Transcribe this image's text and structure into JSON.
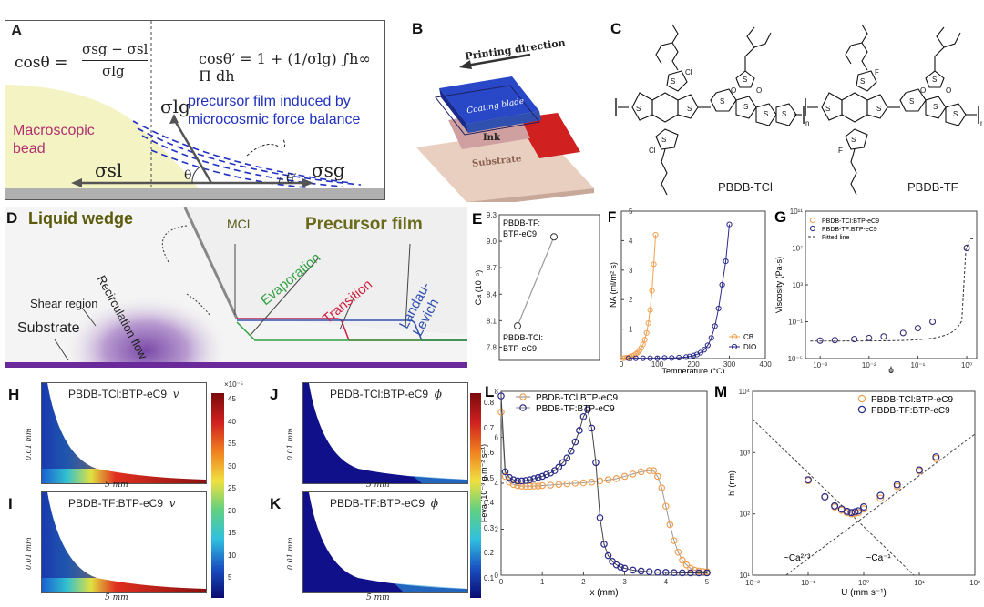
{
  "panels": {
    "A": {
      "label": "A",
      "eq1_lhs": "cosθ =",
      "eq1_num": "σsg − σsl",
      "eq1_den": "σlg",
      "eq2": "cosθ′ = 1 + (1/σlg) ∫h∞ Π dh",
      "sigma_lg": "σlg",
      "sigma_sl": "σsl",
      "sigma_sg": "σsg",
      "theta": "θ",
      "theta_prime": "θ′",
      "bead_line1": "Macroscopic",
      "bead_line2": "bead",
      "film_line1": "precursor film induced by",
      "film_line2": "microcosmic force balance"
    },
    "B": {
      "label": "B",
      "printing": "Printing direction",
      "blade": "Coating blade",
      "ink": "Ink",
      "substrate": "Substrate"
    },
    "C": {
      "label": "C",
      "mol1": "PBDB-TCl",
      "mol2": "PBDB-TF",
      "atom_cl": "Cl",
      "atom_f": "F",
      "atom_s": "S",
      "atom_o": "O",
      "sub_n": "n"
    },
    "D": {
      "label": "D",
      "liquid_wedge": "Liquid wedge",
      "precursor_film": "Precursor film",
      "mcl": "MCL",
      "recirculation": "Recirculation flow",
      "shear": "Shear region",
      "substrate": "Substrate",
      "evaporation": "Evaporation",
      "transition": "Transition",
      "landau": "Landau-Levich"
    },
    "H": {
      "label": "H",
      "title": "PBDB-TCl:BTP-eC9",
      "var": "v",
      "ylab": "0.01 mm",
      "xlab": "5 mm"
    },
    "I": {
      "label": "I",
      "title": "PBDB-TF:BTP-eC9",
      "var": "v",
      "ylab": "0.01 mm",
      "xlab": "5 mm"
    },
    "J": {
      "label": "J",
      "title": "PBDB-TCl:BTP-eC9",
      "var": "ϕ",
      "ylab": "0.01 mm",
      "xlab": "5 mm"
    },
    "K": {
      "label": "K",
      "title": "PBDB-TF:BTP-eC9",
      "var": "ϕ",
      "ylab": "0.01 mm",
      "xlab": "5 mm"
    },
    "colorbar_v": {
      "exp": "×10⁻⁵",
      "ticks": [
        "45",
        "40",
        "35",
        "30",
        "25",
        "20",
        "15",
        "10",
        "5"
      ]
    },
    "colorbar_phi": {
      "ticks": [
        "0.8",
        "0.7",
        "0.6",
        "0.5",
        "0.4",
        "0.3",
        "0.2",
        "0.1"
      ]
    }
  },
  "chart_data": [
    {
      "panel": "E",
      "label": "E",
      "type": "line",
      "ylabel": "Ca (10⁻⁵)",
      "ylim": [
        7.65,
        9.3
      ],
      "yticks": [
        "9.3",
        "9.0",
        "8.7",
        "8.4",
        "8.1",
        "7.8"
      ],
      "points": [
        {
          "name": "PBDB-TCl:BTP-eC9",
          "label1": "PBDB-TCl:",
          "label2": "BTP-eC9",
          "y": 8.04
        },
        {
          "name": "PBDB-TF:BTP-eC9",
          "label1": "PBDB-TF:",
          "label2": "BTP-eC9",
          "y": 9.05
        }
      ]
    },
    {
      "panel": "F",
      "label": "F",
      "type": "scatter",
      "xlabel": "Temperature (°C)",
      "ylabel": "NA (ml/m² s)",
      "xlim": [
        0,
        400
      ],
      "ylim": [
        0,
        5
      ],
      "xticks": [
        "0",
        "100",
        "200",
        "300",
        "400"
      ],
      "yticks": [
        "0",
        "1",
        "2",
        "3",
        "4",
        "5"
      ],
      "legend": [
        "CB",
        "DIO"
      ],
      "series": [
        {
          "name": "CB",
          "color": "#f0a050",
          "x": [
            5,
            10,
            15,
            20,
            25,
            30,
            35,
            40,
            45,
            50,
            55,
            60,
            65,
            70,
            75,
            80,
            85,
            90,
            95
          ],
          "y": [
            0.01,
            0.02,
            0.03,
            0.04,
            0.06,
            0.08,
            0.11,
            0.15,
            0.2,
            0.27,
            0.36,
            0.48,
            0.64,
            0.87,
            1.2,
            1.65,
            2.3,
            3.2,
            4.2
          ]
        },
        {
          "name": "DIO",
          "color": "#2a2a8a",
          "x": [
            20,
            40,
            60,
            80,
            100,
            120,
            140,
            160,
            180,
            190,
            200,
            210,
            220,
            230,
            240,
            250,
            260,
            270,
            280,
            290,
            300
          ],
          "y": [
            0.01,
            0.01,
            0.01,
            0.01,
            0.01,
            0.02,
            0.02,
            0.03,
            0.05,
            0.07,
            0.1,
            0.14,
            0.2,
            0.3,
            0.45,
            0.7,
            1.1,
            1.7,
            2.5,
            3.3,
            4.55
          ]
        }
      ]
    },
    {
      "panel": "G",
      "label": "G",
      "type": "scatter",
      "xlabel": "ϕ",
      "ylabel": "Viscosity (Pa·s)",
      "log_x": true,
      "log_y": true,
      "xlim": [
        0.0005,
        1.6
      ],
      "ylim": [
        1e-05,
        100000000000.0
      ],
      "xticks": [
        "10⁻³",
        "10⁻²",
        "10⁻¹",
        "10⁰"
      ],
      "yticks": [
        "10¹¹",
        "10⁷",
        "10³",
        "10⁻¹",
        "10⁻⁵"
      ],
      "legend": [
        "PBDB-TCl:BTP-eC9",
        "PBDB-TF:BTP-eC9",
        "Fitted line"
      ],
      "series": [
        {
          "name": "PBDB-TCl:BTP-eC9",
          "color": "#f0a050",
          "x": [
            0.001,
            0.002,
            0.005,
            0.01,
            0.02,
            0.05,
            0.1,
            0.2,
            1.0
          ],
          "y": [
            0.0009,
            0.001,
            0.0013,
            0.0017,
            0.0025,
            0.006,
            0.02,
            0.1,
            10000000.0
          ]
        },
        {
          "name": "PBDB-TF:BTP-eC9",
          "color": "#2a2a8a",
          "x": [
            0.001,
            0.002,
            0.005,
            0.01,
            0.02,
            0.05,
            0.1,
            0.2,
            1.0
          ],
          "y": [
            0.0009,
            0.001,
            0.0013,
            0.0017,
            0.0025,
            0.006,
            0.02,
            0.1,
            10000000.0
          ]
        }
      ]
    },
    {
      "panel": "L",
      "label": "L",
      "type": "line",
      "xlabel": "x (mm)",
      "ylabel": "Feva (10⁻³ g m⁻² s⁻¹)",
      "xlim": [
        0,
        5
      ],
      "ylim": [
        0,
        8
      ],
      "xticks": [
        "0",
        "1",
        "2",
        "3",
        "4",
        "5"
      ],
      "yticks": [
        "0",
        "2",
        "4",
        "6",
        "8"
      ],
      "legend": [
        "PBDB-TCl:BTP-eC9",
        "PBDB-TF:BTP-eC9"
      ],
      "series": [
        {
          "name": "PBDB-TCl:BTP-eC9",
          "color": "#f0a050",
          "x": [
            0,
            0.1,
            0.2,
            0.3,
            0.4,
            0.5,
            0.6,
            0.7,
            0.8,
            0.9,
            1.0,
            1.2,
            1.4,
            1.6,
            1.8,
            2.0,
            2.2,
            2.4,
            2.6,
            2.8,
            3.0,
            3.2,
            3.4,
            3.6,
            3.7,
            3.8,
            3.9,
            4.0,
            4.1,
            4.2,
            4.3,
            4.4,
            4.5,
            4.6,
            4.7,
            4.8,
            4.9,
            5.0
          ],
          "y": [
            7.1,
            4.3,
            4.05,
            3.95,
            3.9,
            3.88,
            3.87,
            3.87,
            3.88,
            3.88,
            3.9,
            3.92,
            3.95,
            3.98,
            4.0,
            4.02,
            4.05,
            4.1,
            4.15,
            4.2,
            4.3,
            4.4,
            4.5,
            4.55,
            4.55,
            4.3,
            3.8,
            3.0,
            2.2,
            1.5,
            1.0,
            0.65,
            0.45,
            0.3,
            0.22,
            0.18,
            0.16,
            0.15
          ]
        },
        {
          "name": "PBDB-TF:BTP-eC9",
          "color": "#2a2a8a",
          "x": [
            0,
            0.1,
            0.2,
            0.3,
            0.4,
            0.5,
            0.6,
            0.7,
            0.8,
            0.9,
            1.0,
            1.1,
            1.2,
            1.3,
            1.4,
            1.5,
            1.6,
            1.7,
            1.8,
            1.9,
            2.0,
            2.1,
            2.2,
            2.3,
            2.4,
            2.5,
            2.6,
            2.7,
            2.8,
            2.9,
            3.0,
            3.2,
            3.4,
            3.6,
            3.8,
            4.0,
            4.2,
            4.4,
            4.6,
            4.8,
            5.0
          ],
          "y": [
            7.8,
            4.5,
            4.25,
            4.15,
            4.1,
            4.1,
            4.12,
            4.15,
            4.2,
            4.25,
            4.3,
            4.38,
            4.45,
            4.55,
            4.7,
            4.9,
            5.1,
            5.4,
            5.8,
            6.3,
            6.9,
            7.2,
            6.4,
            4.9,
            2.5,
            1.35,
            0.85,
            0.6,
            0.45,
            0.35,
            0.3,
            0.22,
            0.18,
            0.15,
            0.13,
            0.12,
            0.11,
            0.1,
            0.1,
            0.1,
            0.1
          ]
        }
      ]
    },
    {
      "panel": "M",
      "label": "M",
      "type": "scatter",
      "xlabel": "U (mm s⁻¹)",
      "ylabel": "h′ (nm)",
      "log_x": true,
      "log_y": true,
      "xlim": [
        0.01,
        100
      ],
      "ylim": [
        10,
        10000
      ],
      "xticks": [
        "10⁻²",
        "10⁻¹",
        "10⁰",
        "10¹",
        "10²"
      ],
      "yticks": [
        "10⁴",
        "10³",
        "10²",
        "10¹"
      ],
      "legend": [
        "PBDB-TCl:BTP-eC9",
        "PBDB-TF:BTP-eC9"
      ],
      "annotations": [
        "~Ca²ᐟ³",
        "~Ca⁻¹"
      ],
      "series": [
        {
          "name": "PBDB-TCl:BTP-eC9",
          "color": "#f0a050",
          "x": [
            0.1,
            0.2,
            0.3,
            0.4,
            0.5,
            0.6,
            0.7,
            0.8,
            1.0,
            2.0,
            4.0,
            10.0,
            20.0
          ],
          "y": [
            350,
            190,
            130,
            115,
            105,
            100,
            102,
            105,
            120,
            180,
            280,
            500,
            800
          ]
        },
        {
          "name": "PBDB-TF:BTP-eC9",
          "color": "#2a2a8a",
          "x": [
            0.1,
            0.2,
            0.3,
            0.4,
            0.5,
            0.6,
            0.7,
            0.8,
            1.0,
            2.0,
            4.0,
            10.0,
            20.0
          ],
          "y": [
            360,
            190,
            135,
            120,
            110,
            105,
            108,
            112,
            130,
            200,
            300,
            520,
            850
          ]
        }
      ]
    }
  ]
}
